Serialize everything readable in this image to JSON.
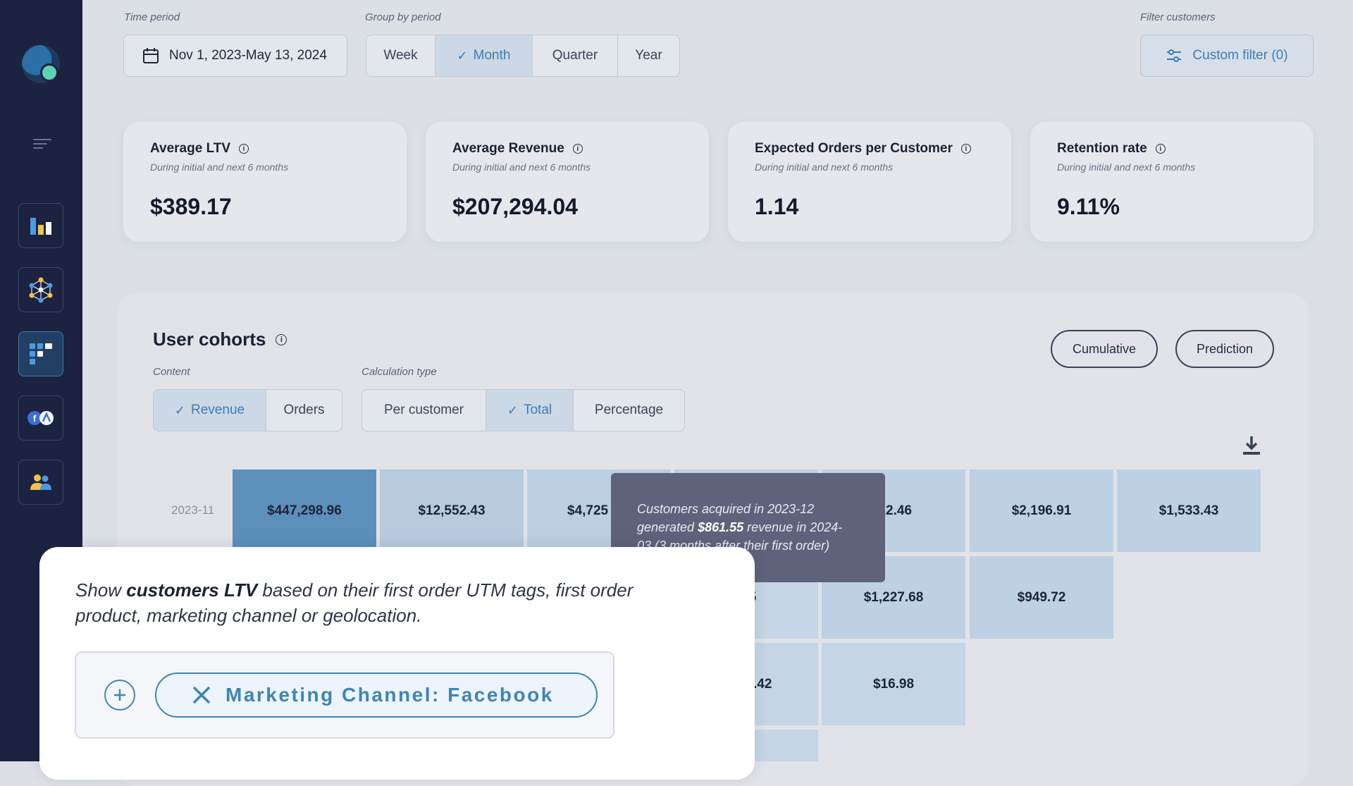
{
  "filters": {
    "time_period_label": "Time period",
    "date_range": "Nov 1, 2023-May 13, 2024",
    "group_label": "Group by period",
    "group_options": [
      "Week",
      "Month",
      "Quarter",
      "Year"
    ],
    "group_selected": "Month",
    "filter_label": "Filter customers",
    "custom_filter": "Custom filter (0)"
  },
  "kpis": [
    {
      "title": "Average LTV",
      "subtitle": "During initial and next 6 months",
      "value": "$389.17"
    },
    {
      "title": "Average Revenue",
      "subtitle": "During initial and next 6 months",
      "value": "$207,294.04"
    },
    {
      "title": "Expected Orders per Customer",
      "subtitle": "During initial and next 6 months",
      "value": "1.14"
    },
    {
      "title": "Retention rate",
      "subtitle": "During initial and next 6 months",
      "value": "9.11%"
    }
  ],
  "cohorts": {
    "title": "User cohorts",
    "cumulative": "Cumulative",
    "prediction": "Prediction",
    "content_label": "Content",
    "content_options": [
      "Revenue",
      "Orders"
    ],
    "content_selected": "Revenue",
    "calc_label": "Calculation type",
    "calc_options": [
      "Per customer",
      "Total",
      "Percentage"
    ],
    "calc_selected": "Total",
    "row_label": "2023-11",
    "cells": {
      "r1": [
        "$447,298.96",
        "$12,552.43",
        "$4,725",
        "22.46",
        "$2,196.91",
        "$1,533.43"
      ],
      "r2": [
        "55",
        "$1,227.68",
        "$949.72"
      ],
      "r3": [
        ".42",
        "$16.98"
      ]
    }
  },
  "tooltip": {
    "line1": "Customers acquired in 2023-12",
    "pre": "generated ",
    "amount": "$861.55",
    "post": " revenue in 2024-",
    "line3": "03 (3 months after their first order)"
  },
  "overlay": {
    "pre": "Show ",
    "bold": "customers LTV",
    "post": " based on their first order UTM tags, first order product, marketing channel or geolocation.",
    "chip": "Marketing Channel: Facebook"
  }
}
